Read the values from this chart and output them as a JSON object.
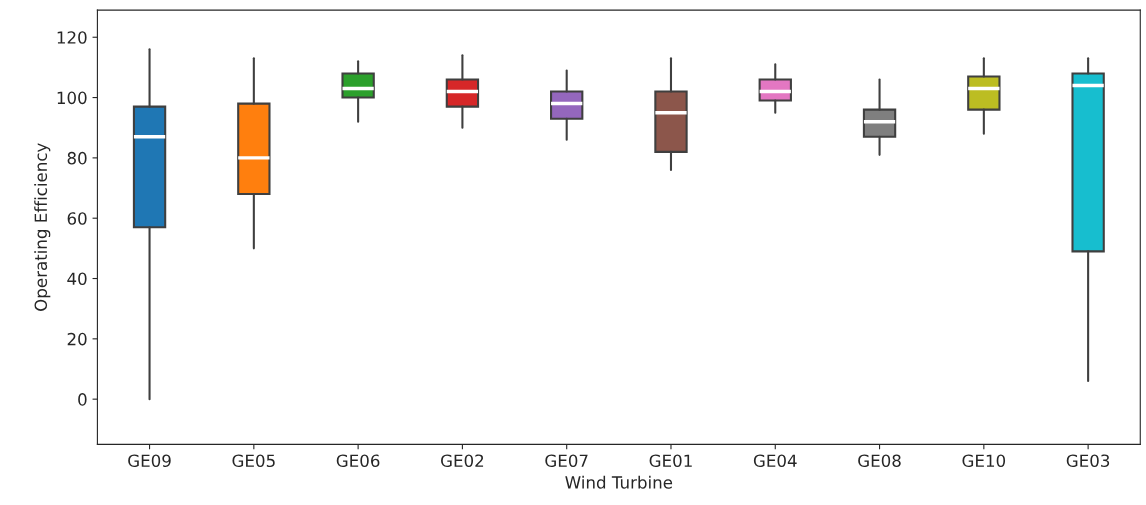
{
  "chart_data": {
    "type": "box",
    "xlabel": "Wind Turbine",
    "ylabel": "Operating Efficiency",
    "categories": [
      "GE09",
      "GE05",
      "GE06",
      "GE02",
      "GE07",
      "GE01",
      "GE04",
      "GE08",
      "GE10",
      "GE03"
    ],
    "colors": [
      "#1f77b4",
      "#ff7f0e",
      "#2ca02c",
      "#d62728",
      "#9467bd",
      "#8c564b",
      "#e377c2",
      "#7f7f7f",
      "#bcbd22",
      "#17becf"
    ],
    "boxes": [
      {
        "low": 0,
        "q1": 57,
        "median": 87,
        "q3": 97,
        "high": 116
      },
      {
        "low": 50,
        "q1": 68,
        "median": 80,
        "q3": 98,
        "high": 113
      },
      {
        "low": 92,
        "q1": 100,
        "median": 103,
        "q3": 108,
        "high": 112
      },
      {
        "low": 90,
        "q1": 97,
        "median": 102,
        "q3": 106,
        "high": 114
      },
      {
        "low": 86,
        "q1": 93,
        "median": 98,
        "q3": 102,
        "high": 109
      },
      {
        "low": 76,
        "q1": 82,
        "median": 95,
        "q3": 102,
        "high": 113
      },
      {
        "low": 95,
        "q1": 99,
        "median": 102,
        "q3": 106,
        "high": 111
      },
      {
        "low": 81,
        "q1": 87,
        "median": 92,
        "q3": 96,
        "high": 106
      },
      {
        "low": 88,
        "q1": 96,
        "median": 103,
        "q3": 107,
        "high": 113
      },
      {
        "low": 6,
        "q1": 49,
        "median": 104,
        "q3": 108,
        "high": 113
      }
    ],
    "ylim": [
      -15,
      129
    ],
    "yticks": [
      0,
      20,
      40,
      60,
      80,
      100,
      120
    ],
    "grid": false
  }
}
